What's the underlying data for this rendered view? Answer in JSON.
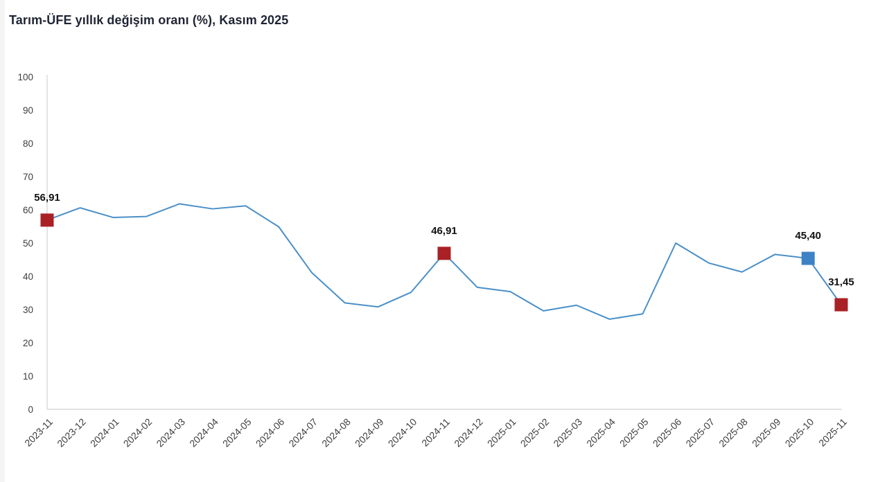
{
  "page": {
    "background": "#ffffff"
  },
  "colors": {
    "line": "#4a8fc8",
    "marker_red": "#a92125",
    "marker_blue": "#3d82c4",
    "axis_line": "#d8d8d8",
    "tick_text": "#3d3d3d",
    "title_text": "#1e2433",
    "point_label_text": "#111111"
  },
  "chart_data": {
    "type": "line",
    "title": "Tarım-ÜFE yıllık değişim oranı (%), Kasım 2025",
    "xlabel": "",
    "ylabel": "",
    "x": [
      "2023-11",
      "2023-12",
      "2024-01",
      "2024-02",
      "2024-03",
      "2024-04",
      "2024-05",
      "2024-06",
      "2024-07",
      "2024-08",
      "2024-09",
      "2024-10",
      "2024-11",
      "2024-12",
      "2025-01",
      "2025-02",
      "2025-03",
      "2025-04",
      "2025-05",
      "2025-06",
      "2025-07",
      "2025-08",
      "2025-09",
      "2025-10",
      "2025-11"
    ],
    "values": [
      56.91,
      60.6,
      57.7,
      58.0,
      61.8,
      60.3,
      61.2,
      54.9,
      41.1,
      32.0,
      30.8,
      35.2,
      46.91,
      36.7,
      35.4,
      29.6,
      31.3,
      27.1,
      28.7,
      50.0,
      44.0,
      41.3,
      46.6,
      45.4,
      31.45
    ],
    "ylim": [
      0,
      100
    ],
    "yticks": [
      0,
      10,
      20,
      30,
      40,
      50,
      60,
      70,
      80,
      90,
      100
    ],
    "grid": "none",
    "legend": "none",
    "annotated_points": [
      {
        "x": "2023-11",
        "value": 56.91,
        "label": "56,91",
        "marker": "red-square"
      },
      {
        "x": "2024-11",
        "value": 46.91,
        "label": "46,91",
        "marker": "red-square"
      },
      {
        "x": "2025-10",
        "value": 45.4,
        "label": "45,40",
        "marker": "blue-square"
      },
      {
        "x": "2025-11",
        "value": 31.45,
        "label": "31,45",
        "marker": "red-square"
      }
    ]
  }
}
